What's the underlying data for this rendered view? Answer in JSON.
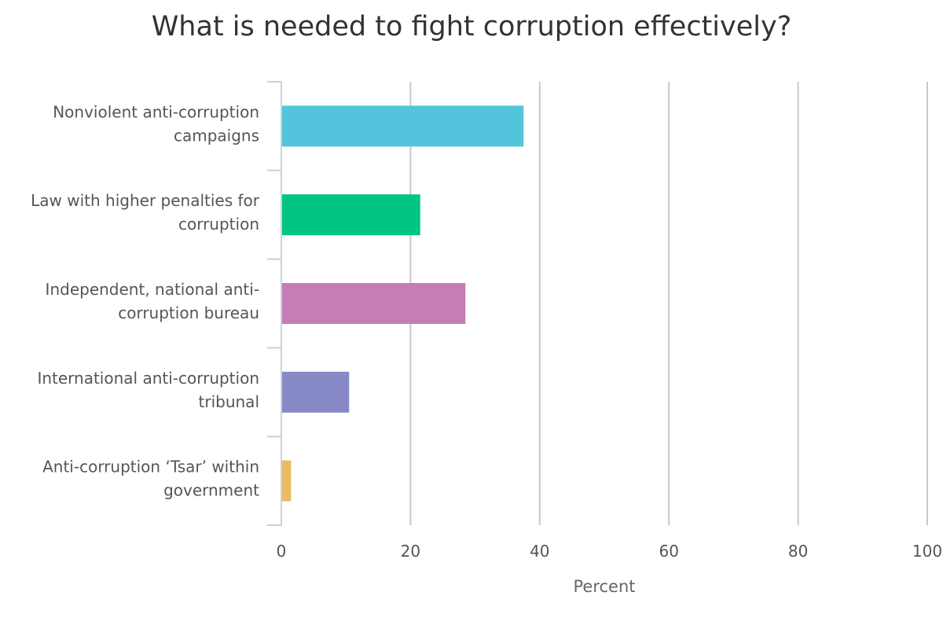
{
  "chart_data": {
    "type": "bar",
    "orientation": "horizontal",
    "title": "What is needed to fight corruption effectively?",
    "categories": [
      [
        "Nonviolent anti-corruption",
        "campaigns"
      ],
      [
        "Law with higher penalties for",
        "corruption"
      ],
      [
        "Independent, national anti-",
        "corruption bureau"
      ],
      [
        "International anti-corruption",
        "tribunal"
      ],
      [
        "Anti-corruption ‘Tsar’ within",
        "government"
      ]
    ],
    "values": [
      37.5,
      21.5,
      28.5,
      10.5,
      1.5
    ],
    "colors": [
      "#54c4dc",
      "#00c483",
      "#c57db5",
      "#8789c7",
      "#e9bd5f"
    ],
    "xlabel": "Percent",
    "ylabel": "",
    "xlim": [
      0,
      100
    ],
    "xticks": [
      "0",
      "20",
      "40",
      "60",
      "80",
      "100"
    ],
    "grid": true,
    "legend": "none"
  }
}
